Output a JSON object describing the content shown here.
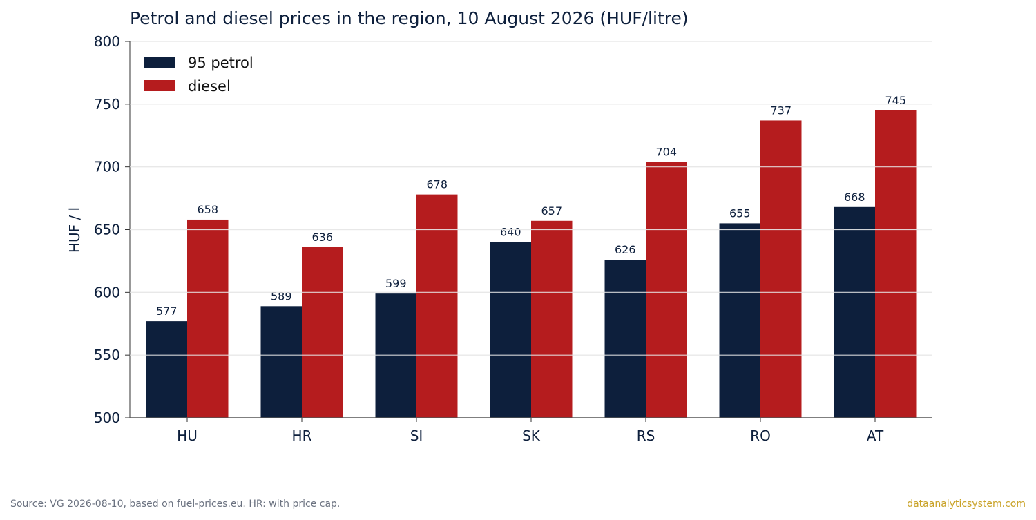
{
  "chart_data": {
    "type": "bar",
    "title": "Petrol and diesel prices in the region, 10 August 2026 (HUF/litre)",
    "xlabel": "",
    "ylabel": "HUF / l",
    "ylim": [
      500,
      800
    ],
    "yticks": [
      500,
      550,
      600,
      650,
      700,
      750,
      800
    ],
    "categories": [
      "HU",
      "HR",
      "SI",
      "SK",
      "RS",
      "RO",
      "AT"
    ],
    "series": [
      {
        "name": "95 petrol",
        "color": "#0d1f3c",
        "values": [
          577,
          589,
          599,
          640,
          626,
          655,
          668
        ]
      },
      {
        "name": "diesel",
        "color": "#b51c1e",
        "values": [
          658,
          636,
          678,
          657,
          704,
          737,
          745
        ]
      }
    ],
    "grid": true,
    "legend": "top-left"
  },
  "footer": {
    "source": "Source: VG 2026-08-10, based on fuel-prices.eu. HR: with price cap.",
    "brand": "dataanalyticsystem.com"
  }
}
